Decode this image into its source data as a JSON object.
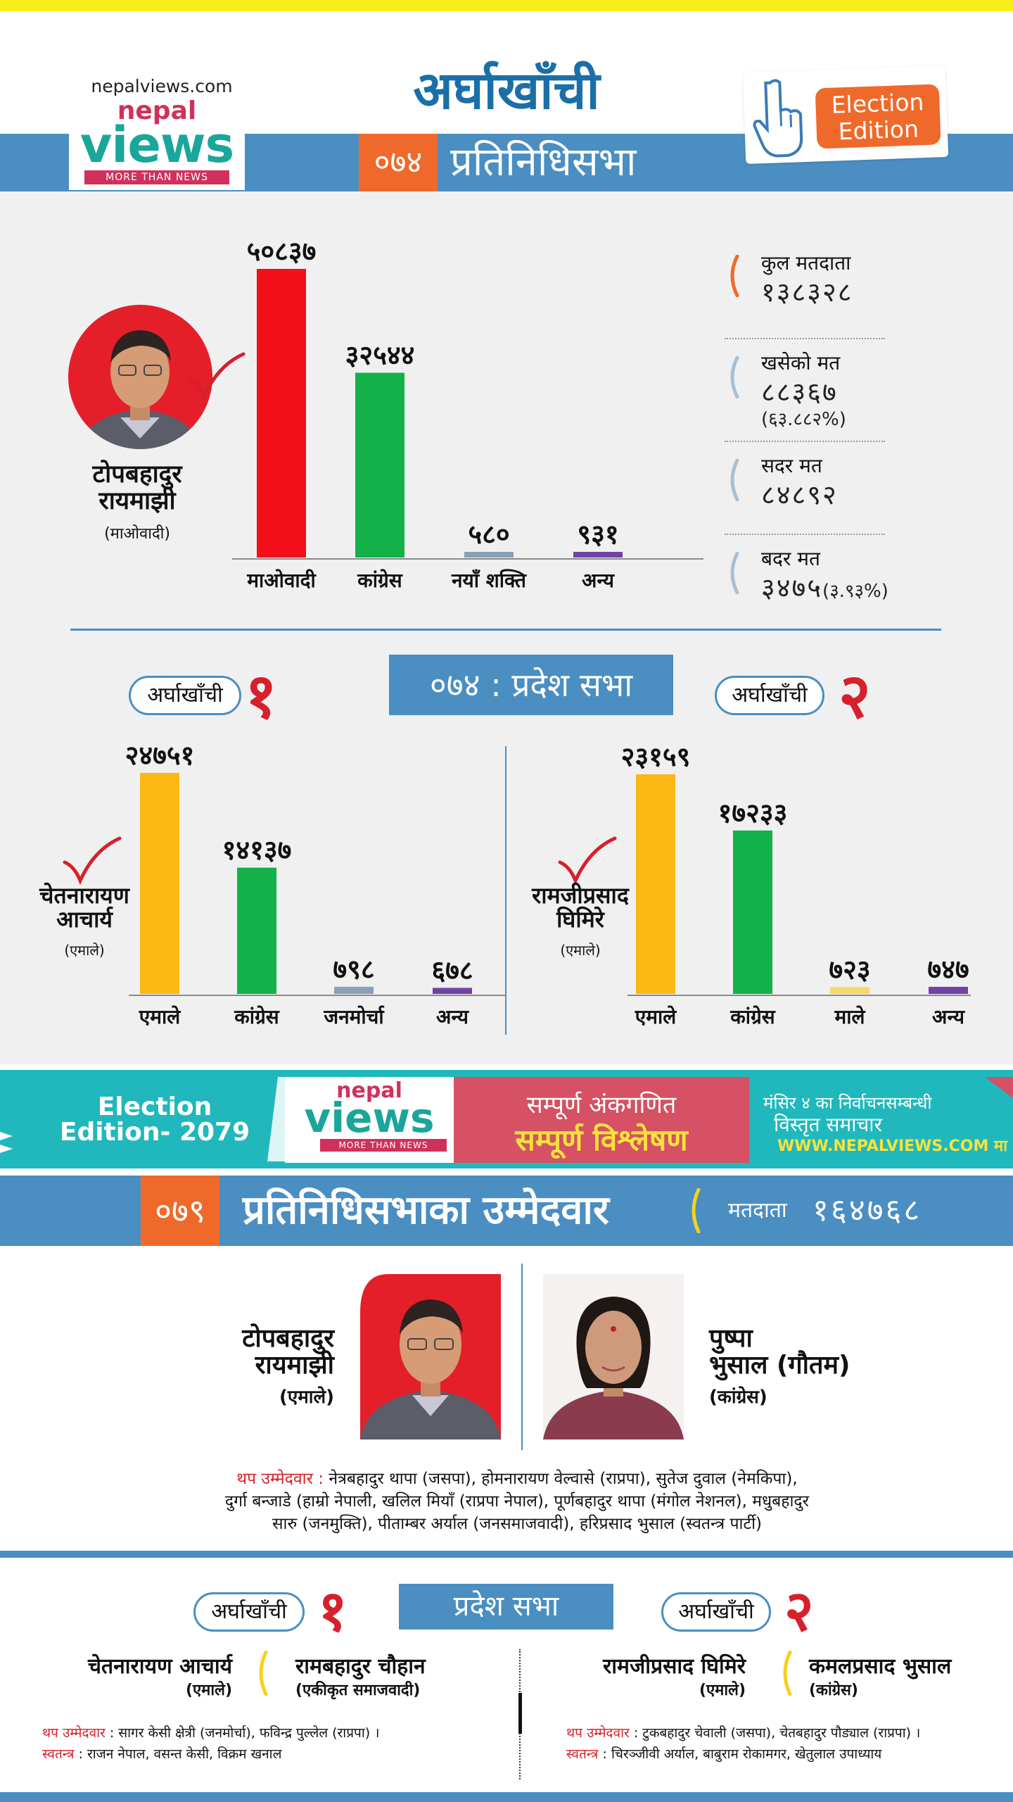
{
  "header": {
    "site": "nepalviews.com",
    "logo_small": "nepal",
    "logo_big": "views",
    "logo_tag": "MORE THAN NEWS",
    "district": "अर्घाखाँची",
    "year_074": "०७४",
    "house": "प्रतिनिधिसभा",
    "edition_badge_1": "Election",
    "edition_badge_2": "Edition"
  },
  "federal_074": {
    "winner_name_1": "टोपबहादुर",
    "winner_name_2": "रायमाझी",
    "winner_party": "(माओवादी)",
    "stats": {
      "total_voters_label": "कुल मतदाता",
      "total_voters": "१३८३२८",
      "cast_label": "खसेको मत",
      "cast": "८८३६७",
      "cast_pct": "(६३.८८२%)",
      "valid_label": "सदर मत",
      "valid": "८४८९२",
      "invalid_label": "बदर मत",
      "invalid": "३४७५",
      "invalid_pct": "(३.९३%)"
    }
  },
  "chart_data": [
    {
      "type": "bar",
      "categories": [
        "माओवादी",
        "कांग्रेस",
        "नयाँ शक्ति",
        "अन्य"
      ],
      "values": [
        50837,
        32544,
        580,
        931
      ],
      "value_labels": [
        "५०८३७",
        "३२५४४",
        "५८०",
        "९३१"
      ],
      "colors": [
        "#f20f19",
        "#12b14a",
        "#8aa0b9",
        "#7241a5"
      ],
      "ylim": [
        0,
        50837
      ]
    },
    {
      "type": "bar",
      "categories": [
        "एमाले",
        "कांग्रेस",
        "जनमोर्चा",
        "अन्य"
      ],
      "values": [
        24751,
        14137,
        798,
        678
      ],
      "value_labels": [
        "२४७५१",
        "१४१३७",
        "७९८",
        "६७८"
      ],
      "colors": [
        "#fcb813",
        "#12b14a",
        "#8aa0b9",
        "#7241a5"
      ],
      "ylim": [
        0,
        24751
      ]
    },
    {
      "type": "bar",
      "categories": [
        "एमाले",
        "कांग्रेस",
        "माले",
        "अन्य"
      ],
      "values": [
        23159,
        17233,
        723,
        747
      ],
      "value_labels": [
        "२३१५९",
        "१७२३३",
        "७२३",
        "७४७"
      ],
      "colors": [
        "#fcb813",
        "#12b14a",
        "#f7d866",
        "#7241a5"
      ],
      "ylim": [
        0,
        23159
      ]
    }
  ],
  "provincial_074": {
    "title": "०७४ : प्रदेश सभा",
    "pill_label": "अर्घाखाँची",
    "num_1": "१",
    "num_2": "२",
    "winner1_name_1": "चेतनारायण",
    "winner1_name_2": "आचार्य",
    "winner1_party": "(एमाले)",
    "winner2_name_1": "रामजीप्रसाद",
    "winner2_name_2": "घिमिरे",
    "winner2_party": "(एमाले)"
  },
  "ad": {
    "left_1": "Election",
    "left_2": "Edition- 2079",
    "logo_small": "nepal",
    "logo_big": "views",
    "logo_tag": "MORE THAN NEWS",
    "red_1": "सम्पूर्ण अंकगणित",
    "red_2": "सम्पूर्ण विश्लेषण",
    "right_1": "मंसिर ४ का निर्वाचनसम्बन्धी",
    "right_2": "विस्तृत समाचार",
    "right_3": "WWW.NEPALVIEWS.COM मा"
  },
  "federal_079": {
    "year": "०७९",
    "title": "प्रतिनिधिसभाका उम्मेदवार",
    "voters_label": "मतदाता",
    "voters": "१६४७६८",
    "cand1_name_1": "टोपबहादुर",
    "cand1_name_2": "रायमाझी",
    "cand1_party": "(एमाले)",
    "cand2_name_1": "पुष्पा",
    "cand2_name_2": "भुसाल (गौतम)",
    "cand2_party": "(कांग्रेस)",
    "extra_label": "थप उम्मेदवार :",
    "extra_line_1": "नेत्रबहादुर थापा (जसपा), होमनारायण वेल्वासे (राप्रपा), सुतेज दुवाल (नेमकिपा),",
    "extra_line_2": "दुर्गा बन्जाडे (हाम्रो नेपाली, खलिल मियाँ (राप्रपा नेपाल), पूर्णबहादुर थापा (मंगोल नेशनल), मधुबहादुर",
    "extra_line_3": "सारु (जनमुक्ति), पीताम्बर अर्याल (जनसमाजवादी), हरिप्रसाद भुसाल (स्वतन्त्र पार्टी)"
  },
  "provincial_079": {
    "title": "प्रदेश सभा",
    "pill_label": "अर्घाखाँची",
    "num_1": "१",
    "num_2": "२",
    "c1a_name": "चेतनारायण आचार्य",
    "c1a_party": "(एमाले)",
    "c1b_name": "रामबहादुर चौहान",
    "c1b_party": "(एकीकृत समाजवादी)",
    "c2a_name": "रामजीप्रसाद घिमिरे",
    "c2a_party": "(एमाले)",
    "c2b_name": "कमलप्रसाद भुसाल",
    "c2b_party": "(कांग्रेस)",
    "extra_label": "थप उम्मेदवार",
    "indep_label": "स्वतन्त्र",
    "c1_extra": ": सागर केसी क्षेत्री (जनमोर्चा), फविन्द्र पुल्लेल (राप्रपा) ।",
    "c1_indep": ": राजन नेपाल, वसन्त केसी, विक्रम खनाल",
    "c2_extra": ": टुकबहादुर चेवाली (जसपा), चेतबहादुर पौड्याल (राप्रपा) ।",
    "c2_indep": ": चिरञ्जीवी अर्याल, बाबुराम रोकामगर, खेतुलाल उपाध्याय"
  }
}
